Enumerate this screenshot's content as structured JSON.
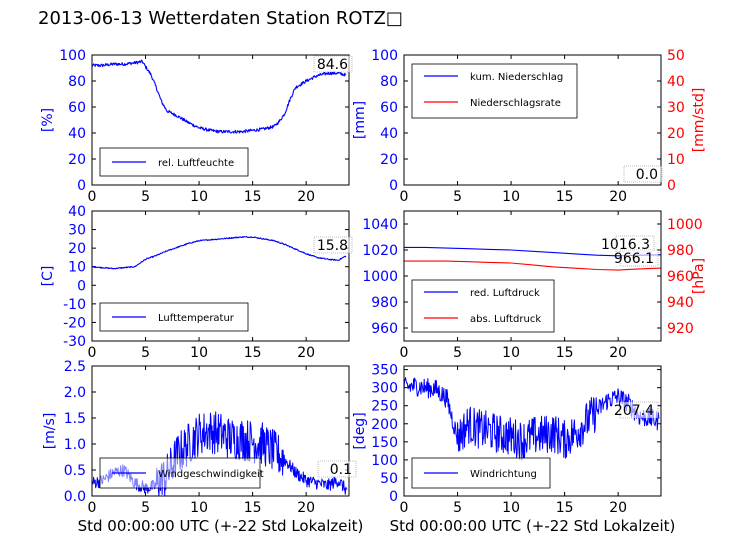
{
  "page": {
    "title": "2013-06-13 Wetterdaten Station ROTZ□"
  },
  "colors": {
    "blue": "#0000ff",
    "red": "#ff0000",
    "black": "#000000"
  },
  "chart_data": [
    {
      "id": "humidity",
      "type": "line",
      "xlim": [
        0,
        24
      ],
      "ylim": [
        0,
        100
      ],
      "xticks": [
        0,
        5,
        10,
        15,
        20
      ],
      "yticks": [
        0,
        20,
        40,
        60,
        80,
        100
      ],
      "ylabel": "[%]",
      "legend_position": "lower-left",
      "current_value": "84.6",
      "series": [
        {
          "name": "rel. Luftfeuchte",
          "color": "#0000ff",
          "axis": "left",
          "noise": 1.2,
          "x": [
            0,
            1,
            2,
            3,
            4,
            4.7,
            5.0,
            5.5,
            6.0,
            6.5,
            7.0,
            8.0,
            9.0,
            10.0,
            11.0,
            12.0,
            13.0,
            14.0,
            15.0,
            16.0,
            17.0,
            17.5,
            18.0,
            18.5,
            19.0,
            20.0,
            21.0,
            22.0,
            23.0,
            23.7
          ],
          "y": [
            92,
            92,
            93,
            93,
            94,
            95,
            91,
            85,
            75,
            64,
            57,
            53,
            48,
            44,
            42,
            41,
            41,
            41,
            42,
            43,
            45,
            49,
            55,
            66,
            75,
            80,
            84,
            86,
            86,
            84.6
          ]
        }
      ]
    },
    {
      "id": "precipitation",
      "type": "line",
      "xlim": [
        0,
        24
      ],
      "ylim": [
        0,
        100
      ],
      "ylim_right": [
        0,
        50
      ],
      "xticks": [
        0,
        5,
        10,
        15,
        20
      ],
      "yticks": [
        0,
        20,
        40,
        60,
        80,
        100
      ],
      "yticks_right": [
        0,
        10,
        20,
        30,
        40,
        50
      ],
      "ylabel": "[mm]",
      "ylabel_right": "[mm/std]",
      "legend_position": "upper-left",
      "current_value": "0.0",
      "series": [
        {
          "name": "kum. Niederschlag",
          "color": "#0000ff",
          "axis": "left",
          "x": [
            0,
            24
          ],
          "y": [
            0,
            0
          ]
        },
        {
          "name": "Niederschlagsrate",
          "color": "#ff0000",
          "axis": "right",
          "x": [
            0,
            24
          ],
          "y": [
            0,
            0
          ]
        }
      ]
    },
    {
      "id": "temperature",
      "type": "line",
      "xlim": [
        0,
        24
      ],
      "ylim": [
        -30,
        40
      ],
      "xticks": [
        0,
        5,
        10,
        15,
        20
      ],
      "yticks": [
        -30,
        -20,
        -10,
        0,
        10,
        20,
        30,
        40
      ],
      "ylabel": "[C]",
      "legend_position": "lower-left",
      "current_value": "15.8",
      "series": [
        {
          "name": "Lufttemperatur",
          "color": "#0000ff",
          "axis": "left",
          "noise": 0.3,
          "x": [
            0,
            1,
            2,
            3,
            4,
            5,
            6,
            7,
            8,
            9,
            10,
            11,
            12,
            13,
            14,
            15,
            16,
            17,
            18,
            19,
            20,
            21,
            22,
            23,
            23.7
          ],
          "y": [
            10,
            9.5,
            9,
            9.5,
            10,
            14,
            16,
            18.5,
            20.5,
            22.5,
            24,
            24.5,
            25,
            25.5,
            26,
            26,
            25,
            24,
            22,
            19.5,
            17,
            15,
            14,
            13.5,
            15.8
          ]
        }
      ]
    },
    {
      "id": "pressure",
      "type": "line",
      "xlim": [
        0,
        24
      ],
      "ylim": [
        950,
        1050
      ],
      "ylim_right": [
        910,
        1010
      ],
      "xticks": [
        0,
        5,
        10,
        15,
        20
      ],
      "yticks": [
        960,
        980,
        1000,
        1020,
        1040
      ],
      "yticks_right": [
        920,
        940,
        960,
        980,
        1000
      ],
      "ylabel_right": "[hPa]",
      "legend_position": "lower-left",
      "current_values": [
        "1016.3",
        "966.1"
      ],
      "series": [
        {
          "name": "red. Luftdruck",
          "color": "#0000ff",
          "axis": "left",
          "x": [
            0,
            2,
            4,
            6,
            8,
            10,
            12,
            14,
            16,
            18,
            20,
            22,
            24
          ],
          "y": [
            1022,
            1022,
            1021.5,
            1021,
            1020.5,
            1020,
            1019,
            1018,
            1017,
            1016,
            1015.5,
            1016,
            1016.3
          ]
        },
        {
          "name": "abs. Luftdruck",
          "color": "#ff0000",
          "axis": "right",
          "x": [
            0,
            2,
            4,
            6,
            8,
            10,
            12,
            14,
            16,
            18,
            20,
            22,
            24
          ],
          "y": [
            971.5,
            971.5,
            971.5,
            971,
            970.5,
            970,
            968.5,
            967,
            966,
            965,
            964.5,
            965.5,
            966.1
          ]
        }
      ]
    },
    {
      "id": "windspeed",
      "type": "line",
      "xlim": [
        0,
        24
      ],
      "ylim": [
        0,
        2.5
      ],
      "xticks": [
        0,
        5,
        10,
        15,
        20
      ],
      "yticks": [
        0.0,
        0.5,
        1.0,
        1.5,
        2.0,
        2.5
      ],
      "ylabel": "[m/s]",
      "xlabel": "Std 00:00:00 UTC (+-22 Std Lokalzeit)",
      "legend_position": "lower-left",
      "current_value": "0.1",
      "series": [
        {
          "name": "Windgeschwindigkeit",
          "color": "#0000ff",
          "axis": "left",
          "noise": 0.35,
          "floor": 0.0,
          "x": [
            0,
            1,
            2,
            3,
            4,
            5,
            6,
            7,
            8,
            9,
            10,
            11,
            12,
            13,
            14,
            15,
            16,
            17,
            18,
            19,
            20,
            21,
            22,
            23,
            23.8
          ],
          "y": [
            0.25,
            0.3,
            0.45,
            0.5,
            0.25,
            0.15,
            0.2,
            0.4,
            0.8,
            1.0,
            1.2,
            1.25,
            1.2,
            1.1,
            1.1,
            1.05,
            1.0,
            0.85,
            0.7,
            0.45,
            0.3,
            0.25,
            0.2,
            0.3,
            0.1
          ]
        }
      ]
    },
    {
      "id": "winddirection",
      "type": "line",
      "xlim": [
        0,
        24
      ],
      "ylim": [
        0,
        360
      ],
      "xticks": [
        0,
        5,
        10,
        15,
        20
      ],
      "yticks": [
        0,
        50,
        100,
        150,
        200,
        250,
        300,
        350
      ],
      "ylabel": "[deg]",
      "xlabel": "Std 00:00:00 UTC (+-22 Std Lokalzeit)",
      "legend_position": "lower-left",
      "current_value": "207.4",
      "series": [
        {
          "name": "Windrichtung",
          "color": "#0000ff",
          "axis": "left",
          "noise": 55,
          "floor": 0,
          "x": [
            0,
            1,
            2,
            3,
            4,
            5,
            6,
            7,
            8,
            9,
            10,
            11,
            12,
            13,
            14,
            15,
            16,
            17,
            18,
            19,
            20,
            21,
            22,
            23,
            23.8
          ],
          "y": [
            300,
            305,
            300,
            295,
            270,
            160,
            200,
            185,
            180,
            170,
            165,
            155,
            165,
            170,
            175,
            155,
            175,
            205,
            235,
            265,
            275,
            255,
            220,
            215,
            207.4
          ]
        }
      ]
    }
  ]
}
